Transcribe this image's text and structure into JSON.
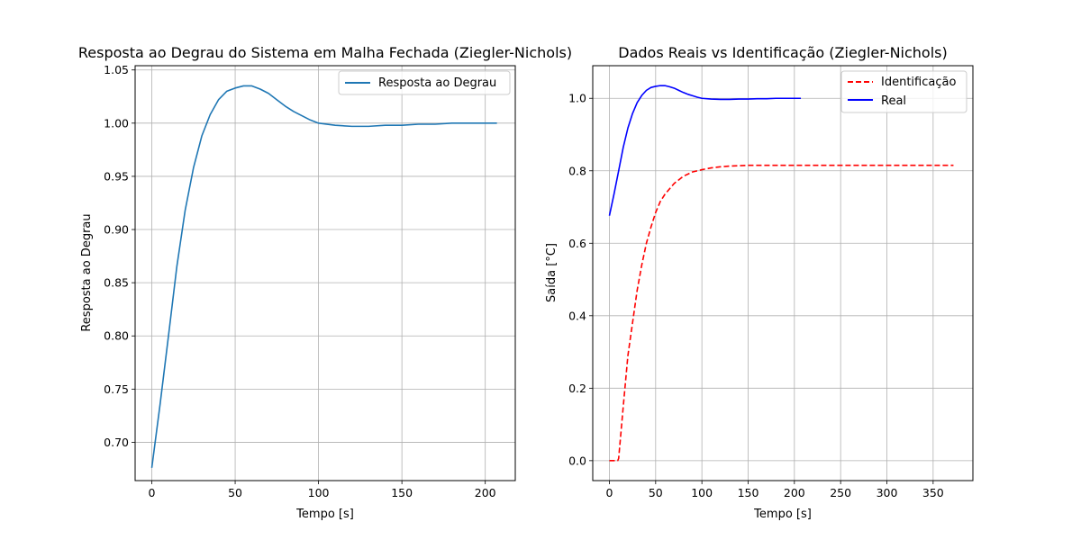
{
  "colors": {
    "background": "#ffffff",
    "grid": "#b0b0b0",
    "axes": "#000000",
    "legend_border": "#cccccc",
    "step_series": "#1f77b4",
    "identification_series": "#ff0000",
    "real_series": "#0000ff"
  },
  "chart_data": [
    {
      "type": "line",
      "title": "Resposta ao Degrau do Sistema em Malha Fechada (Ziegler-Nichols)",
      "xlabel": "Tempo [s]",
      "ylabel": "Resposta ao Degrau",
      "xlim": [
        -10,
        218
      ],
      "ylim": [
        0.664,
        1.054
      ],
      "xticks": [
        0,
        50,
        100,
        150,
        200
      ],
      "xtick_labels": [
        "0",
        "50",
        "100",
        "150",
        "200"
      ],
      "yticks": [
        0.7,
        0.75,
        0.8,
        0.85,
        0.9,
        0.95,
        1.0,
        1.05
      ],
      "ytick_labels": [
        "0.70",
        "0.75",
        "0.80",
        "0.85",
        "0.90",
        "0.95",
        "1.00",
        "1.05"
      ],
      "grid": true,
      "legend": "upper right",
      "series": [
        {
          "name": "Resposta ao Degrau",
          "color": "#1f77b4",
          "dash": "solid",
          "x": [
            0,
            5,
            10,
            15,
            20,
            25,
            30,
            35,
            40,
            45,
            50,
            55,
            60,
            65,
            70,
            75,
            80,
            85,
            90,
            95,
            100,
            110,
            120,
            130,
            140,
            150,
            160,
            170,
            180,
            190,
            200,
            207
          ],
          "y": [
            0.676,
            0.736,
            0.8,
            0.865,
            0.918,
            0.958,
            0.988,
            1.008,
            1.022,
            1.03,
            1.033,
            1.035,
            1.035,
            1.032,
            1.028,
            1.022,
            1.016,
            1.011,
            1.007,
            1.003,
            1.0,
            0.998,
            0.997,
            0.997,
            0.998,
            0.998,
            0.999,
            0.999,
            1.0,
            1.0,
            1.0,
            1.0
          ]
        }
      ]
    },
    {
      "type": "line",
      "title": "Dados Reais vs Identificação (Ziegler-Nichols)",
      "xlabel": "Tempo [s]",
      "ylabel": "Saída [°C]",
      "xlim": [
        -18,
        393
      ],
      "ylim": [
        -0.055,
        1.09
      ],
      "xticks": [
        0,
        50,
        100,
        150,
        200,
        250,
        300,
        350
      ],
      "xtick_labels": [
        "0",
        "50",
        "100",
        "150",
        "200",
        "250",
        "300",
        "350"
      ],
      "yticks": [
        0.0,
        0.2,
        0.4,
        0.6,
        0.8,
        1.0
      ],
      "ytick_labels": [
        "0.0",
        "0.2",
        "0.4",
        "0.6",
        "0.8",
        "1.0"
      ],
      "grid": true,
      "legend": "upper right",
      "series": [
        {
          "name": "Identificação",
          "color": "#ff0000",
          "dash": "dashed",
          "x": [
            0,
            9,
            10,
            15,
            20,
            25,
            30,
            35,
            40,
            45,
            50,
            55,
            60,
            70,
            80,
            90,
            100,
            110,
            120,
            130,
            140,
            150,
            175,
            200,
            250,
            300,
            350,
            372
          ],
          "y": [
            0.0,
            0.0,
            0.006,
            0.15,
            0.29,
            0.38,
            0.47,
            0.54,
            0.6,
            0.645,
            0.685,
            0.715,
            0.735,
            0.765,
            0.785,
            0.797,
            0.803,
            0.808,
            0.811,
            0.813,
            0.814,
            0.815,
            0.815,
            0.815,
            0.815,
            0.815,
            0.815,
            0.815
          ]
        },
        {
          "name": "Real",
          "color": "#0000ff",
          "dash": "solid",
          "x": [
            0,
            5,
            10,
            15,
            20,
            25,
            30,
            35,
            40,
            45,
            50,
            55,
            60,
            65,
            70,
            75,
            80,
            85,
            90,
            95,
            100,
            110,
            120,
            130,
            140,
            150,
            160,
            170,
            180,
            190,
            200,
            207
          ],
          "y": [
            0.676,
            0.736,
            0.8,
            0.865,
            0.918,
            0.958,
            0.988,
            1.008,
            1.022,
            1.03,
            1.033,
            1.035,
            1.035,
            1.032,
            1.028,
            1.022,
            1.016,
            1.011,
            1.007,
            1.003,
            1.0,
            0.998,
            0.997,
            0.997,
            0.998,
            0.998,
            0.999,
            0.999,
            1.0,
            1.0,
            1.0,
            1.0
          ]
        }
      ]
    }
  ]
}
